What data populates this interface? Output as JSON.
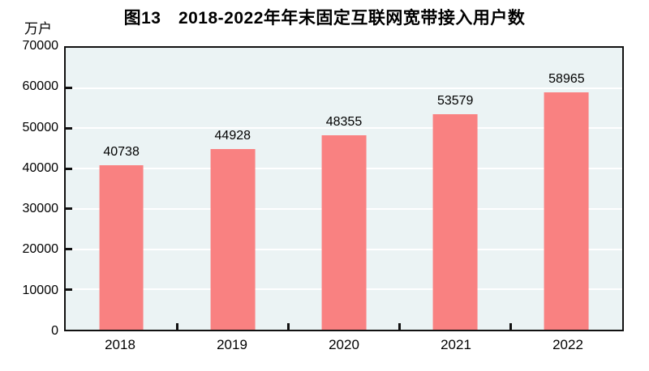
{
  "page": {
    "background": "#ffffff"
  },
  "chart_data": {
    "type": "bar",
    "title": "图13　2018-2022年年末固定互联网宽带接入用户数",
    "unit_label": "万户",
    "categories": [
      "2018",
      "2019",
      "2020",
      "2021",
      "2022"
    ],
    "values": [
      40738,
      44928,
      48355,
      53579,
      58965
    ],
    "value_labels": [
      "40738",
      "44928",
      "48355",
      "53579",
      "58965"
    ],
    "xlabel": "",
    "ylabel": "万户",
    "ylim": [
      0,
      70000
    ],
    "ytick_interval": 10000,
    "yticks": [
      0,
      10000,
      20000,
      30000,
      40000,
      50000,
      60000,
      70000
    ],
    "grid": "horizontal",
    "legend_position": "none",
    "colors": {
      "bar": "#f98181",
      "plot_background": "#ebf3f4",
      "axis": "#111111",
      "gridline": "#ffffff",
      "text": "#000000",
      "page_background": "#ffffff"
    }
  }
}
